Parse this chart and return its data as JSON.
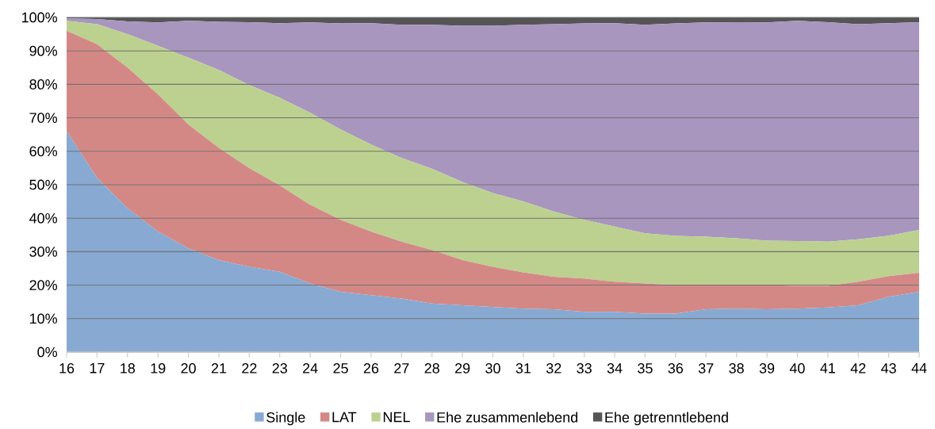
{
  "chart_data": {
    "type": "area",
    "stacked": true,
    "grid": "y",
    "legend": "bottom",
    "marker": "none",
    "x": [
      16,
      17,
      18,
      19,
      20,
      21,
      22,
      23,
      24,
      25,
      26,
      27,
      28,
      29,
      30,
      31,
      32,
      33,
      34,
      35,
      36,
      37,
      38,
      39,
      40,
      41,
      42,
      43,
      44
    ],
    "xlim": [
      16,
      44
    ],
    "xticks": [
      16,
      17,
      18,
      19,
      20,
      21,
      22,
      23,
      24,
      25,
      26,
      27,
      28,
      29,
      30,
      31,
      32,
      33,
      34,
      35,
      36,
      37,
      38,
      39,
      40,
      41,
      42,
      43,
      44
    ],
    "ylim": [
      0,
      100
    ],
    "yticks": [
      {
        "value": 0,
        "label": "0%"
      },
      {
        "value": 10,
        "label": "10%"
      },
      {
        "value": 20,
        "label": "20%"
      },
      {
        "value": 30,
        "label": "30%"
      },
      {
        "value": 40,
        "label": "40%"
      },
      {
        "value": 50,
        "label": "50%"
      },
      {
        "value": 60,
        "label": "60%"
      },
      {
        "value": 70,
        "label": "70%"
      },
      {
        "value": 80,
        "label": "80%"
      },
      {
        "value": 90,
        "label": "90%"
      },
      {
        "value": 100,
        "label": "100%"
      }
    ],
    "series": [
      {
        "name": "Single",
        "color": "#87a9d2",
        "values": [
          66,
          52,
          43,
          36,
          31,
          27.5,
          25.5,
          24,
          20.5,
          18,
          17,
          16,
          14.5,
          14,
          13.5,
          13,
          12.8,
          12,
          12,
          11.5,
          11.5,
          12.8,
          13,
          12.8,
          13,
          13.3,
          14,
          16.5,
          18
        ]
      },
      {
        "name": "LAT",
        "color": "#d48886",
        "values": [
          30,
          40,
          42,
          41,
          37,
          33.5,
          29.5,
          25.8,
          23.5,
          21.5,
          19,
          17,
          16,
          13.5,
          12,
          10.8,
          9.7,
          10,
          9,
          9,
          8.5,
          7.4,
          7,
          7.2,
          6.8,
          6.5,
          7,
          6.2,
          5.7
        ]
      },
      {
        "name": "NEL",
        "color": "#bcd18f",
        "values": [
          3,
          6,
          10,
          14.5,
          20,
          23.3,
          24.8,
          26.2,
          27.5,
          27,
          26,
          25,
          24.3,
          23.3,
          22,
          21.2,
          19.5,
          17.5,
          16.5,
          15,
          14.7,
          14.3,
          14,
          13.3,
          13.4,
          13.2,
          12.7,
          12.1,
          12.8
        ]
      },
      {
        "name": "Ehe zusammenlebend",
        "color": "#a896bf",
        "values": [
          0.7,
          1.5,
          3.8,
          7,
          11,
          14.4,
          18.8,
          22.3,
          27,
          31.7,
          36.3,
          39.8,
          43,
          46.7,
          50,
          52.8,
          56,
          58.7,
          60.8,
          62.3,
          63.5,
          64,
          64.6,
          65.2,
          65.8,
          65.6,
          64.3,
          63.5,
          62.1
        ]
      },
      {
        "name": "Ehe getrenntlebend",
        "color": "#555555",
        "values": [
          0.3,
          0.5,
          1.2,
          1.5,
          1,
          1.3,
          1.4,
          1.7,
          1.5,
          1.8,
          1.7,
          2.2,
          2.2,
          2.5,
          2.5,
          2.2,
          2,
          1.8,
          1.7,
          2.2,
          1.8,
          1.5,
          1.4,
          1.5,
          1,
          1.4,
          2,
          1.7,
          1.4
        ]
      }
    ]
  }
}
